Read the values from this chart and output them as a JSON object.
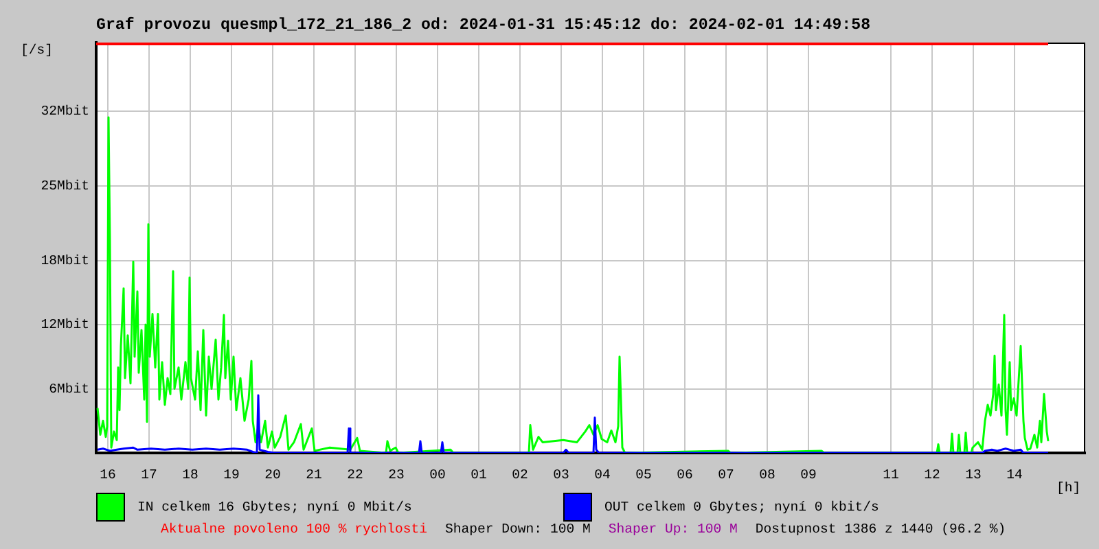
{
  "chart_data": {
    "type": "line",
    "title": "Graf provozu quesmpl_172_21_186_2 od: 2024-01-31 15:45:12 do: 2024-02-01 14:49:58",
    "xlabel": "[h]",
    "ylabel": "[/s]",
    "xlim": [
      "2024-01-31T15:43",
      "2024-02-01T15:43"
    ],
    "xticks": [
      {
        "value": "2024-01-31T16:00",
        "label": "16"
      },
      {
        "value": "2024-01-31T17:00",
        "label": "17"
      },
      {
        "value": "2024-01-31T18:00",
        "label": "18"
      },
      {
        "value": "2024-01-31T19:00",
        "label": "19"
      },
      {
        "value": "2024-01-31T20:00",
        "label": "20"
      },
      {
        "value": "2024-01-31T21:00",
        "label": "21"
      },
      {
        "value": "2024-01-31T22:00",
        "label": "22"
      },
      {
        "value": "2024-01-31T23:00",
        "label": "23"
      },
      {
        "value": "2024-02-01T00:00",
        "label": "00"
      },
      {
        "value": "2024-02-01T01:00",
        "label": "01"
      },
      {
        "value": "2024-02-01T02:00",
        "label": "02"
      },
      {
        "value": "2024-02-01T03:00",
        "label": "03"
      },
      {
        "value": "2024-02-01T04:00",
        "label": "04"
      },
      {
        "value": "2024-02-01T05:00",
        "label": "05"
      },
      {
        "value": "2024-02-01T06:00",
        "label": "06"
      },
      {
        "value": "2024-02-01T07:00",
        "label": "07"
      },
      {
        "value": "2024-02-01T08:00",
        "label": "08"
      },
      {
        "value": "2024-02-01T09:00",
        "label": "09"
      },
      {
        "value": "2024-02-01T11:00",
        "label": "11"
      },
      {
        "value": "2024-02-01T12:00",
        "label": "12"
      },
      {
        "value": "2024-02-01T13:00",
        "label": "13"
      },
      {
        "value": "2024-02-01T14:00",
        "label": "14"
      }
    ],
    "ylim": [
      0,
      38.4
    ],
    "yticks": [
      {
        "value": 6,
        "label": "6Mbit"
      },
      {
        "value": 12,
        "label": "12Mbit"
      },
      {
        "value": 18,
        "label": "18Mbit"
      },
      {
        "value": 25,
        "label": "25Mbit"
      },
      {
        "value": 32,
        "label": "32Mbit"
      }
    ],
    "grid": true,
    "legend": "bottom",
    "marker": "none",
    "line_style": "solid",
    "series": [
      {
        "name": "IN celkem 16 Gbytes; nyní 0 Mbit/s",
        "color": "#00ff00",
        "x": [
          "2024-01-31T15:45",
          "2024-01-31T15:49",
          "2024-01-31T15:53",
          "2024-01-31T15:57",
          "2024-01-31T15:59",
          "2024-01-31T16:01",
          "2024-01-31T16:03",
          "2024-01-31T16:05",
          "2024-01-31T16:09",
          "2024-01-31T16:13",
          "2024-01-31T16:15",
          "2024-01-31T16:17",
          "2024-01-31T16:19",
          "2024-01-31T16:23",
          "2024-01-31T16:25",
          "2024-01-31T16:29",
          "2024-01-31T16:33",
          "2024-01-31T16:37",
          "2024-01-31T16:39",
          "2024-01-31T16:43",
          "2024-01-31T16:45",
          "2024-01-31T16:49",
          "2024-01-31T16:53",
          "2024-01-31T16:55",
          "2024-01-31T16:57",
          "2024-01-31T16:59",
          "2024-01-31T17:01",
          "2024-01-31T17:05",
          "2024-01-31T17:09",
          "2024-01-31T17:13",
          "2024-01-31T17:15",
          "2024-01-31T17:19",
          "2024-01-31T17:23",
          "2024-01-31T17:27",
          "2024-01-31T17:31",
          "2024-01-31T17:35",
          "2024-01-31T17:37",
          "2024-01-31T17:43",
          "2024-01-31T17:47",
          "2024-01-31T17:53",
          "2024-01-31T17:57",
          "2024-01-31T17:59",
          "2024-01-31T18:01",
          "2024-01-31T18:07",
          "2024-01-31T18:11",
          "2024-01-31T18:15",
          "2024-01-31T18:19",
          "2024-01-31T18:23",
          "2024-01-31T18:27",
          "2024-01-31T18:31",
          "2024-01-31T18:37",
          "2024-01-31T18:41",
          "2024-01-31T18:45",
          "2024-01-31T18:49",
          "2024-01-31T18:51",
          "2024-01-31T18:55",
          "2024-01-31T18:59",
          "2024-01-31T19:03",
          "2024-01-31T19:07",
          "2024-01-31T19:13",
          "2024-01-31T19:19",
          "2024-01-31T19:25",
          "2024-01-31T19:29",
          "2024-01-31T19:31",
          "2024-01-31T19:35",
          "2024-01-31T19:39",
          "2024-01-31T19:43",
          "2024-01-31T19:49",
          "2024-01-31T19:53",
          "2024-01-31T19:59",
          "2024-01-31T20:03",
          "2024-01-31T20:11",
          "2024-01-31T20:19",
          "2024-01-31T20:23",
          "2024-01-31T20:31",
          "2024-01-31T20:41",
          "2024-01-31T20:45",
          "2024-01-31T20:57",
          "2024-01-31T21:01",
          "2024-01-31T21:23",
          "2024-01-31T21:53",
          "2024-01-31T22:03",
          "2024-01-31T22:07",
          "2024-01-31T22:45",
          "2024-01-31T22:47",
          "2024-01-31T22:51",
          "2024-01-31T22:59",
          "2024-01-31T23:03",
          "2024-02-01T00:19",
          "2024-02-01T00:23",
          "2024-02-01T02:13",
          "2024-02-01T02:15",
          "2024-02-01T02:19",
          "2024-02-01T02:27",
          "2024-02-01T02:33",
          "2024-02-01T03:03",
          "2024-02-01T03:23",
          "2024-02-01T03:35",
          "2024-02-01T03:41",
          "2024-02-01T03:47",
          "2024-02-01T03:53",
          "2024-02-01T03:59",
          "2024-02-01T04:07",
          "2024-02-01T04:13",
          "2024-02-01T04:19",
          "2024-02-01T04:23",
          "2024-02-01T04:25",
          "2024-02-01T04:27",
          "2024-02-01T04:29",
          "2024-02-01T04:33",
          "2024-02-01T07:03",
          "2024-02-01T07:07",
          "2024-02-01T09:19",
          "2024-02-01T09:23",
          "2024-02-01T12:07",
          "2024-02-01T12:09",
          "2024-02-01T12:11",
          "2024-02-01T12:27",
          "2024-02-01T12:29",
          "2024-02-01T12:31",
          "2024-02-01T12:37",
          "2024-02-01T12:39",
          "2024-02-01T12:41",
          "2024-02-01T12:47",
          "2024-02-01T12:49",
          "2024-02-01T12:51",
          "2024-02-01T12:57",
          "2024-02-01T12:59",
          "2024-02-01T13:07",
          "2024-02-01T13:13",
          "2024-02-01T13:17",
          "2024-02-01T13:21",
          "2024-02-01T13:25",
          "2024-02-01T13:29",
          "2024-02-01T13:31",
          "2024-02-01T13:33",
          "2024-02-01T13:37",
          "2024-02-01T13:41",
          "2024-02-01T13:45",
          "2024-02-01T13:47",
          "2024-02-01T13:49",
          "2024-02-01T13:53",
          "2024-02-01T13:55",
          "2024-02-01T13:59",
          "2024-02-01T14:03",
          "2024-02-01T14:09",
          "2024-02-01T14:13",
          "2024-02-01T14:15",
          "2024-02-01T14:19",
          "2024-02-01T14:23",
          "2024-02-01T14:29",
          "2024-02-01T14:33",
          "2024-02-01T14:37",
          "2024-02-01T14:39",
          "2024-02-01T14:43",
          "2024-02-01T14:47",
          "2024-02-01T14:49"
        ],
        "values": [
          4.2,
          1.7,
          3.0,
          1.5,
          2.5,
          31.4,
          20.0,
          0.5,
          2.0,
          1.2,
          8.0,
          4.0,
          10.0,
          15.4,
          7.0,
          11.0,
          6.5,
          17.9,
          9.0,
          15.1,
          7.5,
          11.5,
          5.0,
          12.0,
          2.9,
          21.4,
          9.0,
          13.0,
          8.0,
          13.0,
          5.0,
          8.5,
          4.5,
          7.0,
          5.5,
          17.0,
          6.0,
          8.0,
          5.0,
          8.5,
          6.0,
          16.4,
          7.0,
          5.0,
          9.5,
          4.0,
          11.5,
          3.5,
          9.0,
          6.0,
          10.6,
          5.0,
          8.0,
          12.9,
          7.0,
          10.5,
          5.0,
          9.0,
          4.0,
          7.0,
          3.0,
          5.0,
          8.6,
          3.0,
          1.0,
          2.5,
          1.0,
          3.0,
          0.5,
          2.0,
          0.5,
          1.5,
          3.5,
          0.3,
          1.0,
          2.7,
          0.3,
          2.3,
          0.2,
          0.5,
          0.3,
          1.4,
          0.2,
          0,
          1.1,
          0.2,
          0.5,
          0,
          0.3,
          0,
          0,
          2.6,
          0.3,
          1.5,
          1.0,
          1.2,
          1.0,
          2.0,
          2.6,
          1.7,
          2.6,
          1.3,
          1.0,
          2.1,
          1.0,
          2.5,
          9.0,
          5.0,
          0.5,
          0,
          0.2,
          0,
          0.2,
          0,
          0,
          0.8,
          0,
          0,
          1.8,
          0,
          0,
          1.7,
          0,
          0,
          1.9,
          0,
          0,
          0.5,
          1.0,
          0.3,
          3.0,
          4.5,
          3.5,
          5.5,
          9.1,
          4.0,
          6.4,
          3.5,
          12.9,
          4.0,
          1.7,
          8.5,
          4.0,
          5.1,
          3.5,
          10.0,
          3.0,
          1.4,
          0.3,
          0.4,
          1.7,
          0.5,
          3.0,
          1.0,
          5.5,
          2.0,
          1.1
        ]
      },
      {
        "name": "OUT celkem 0 Gbytes; nyní 0 kbit/s",
        "color": "#0000ff",
        "x": [
          "2024-01-31T15:45",
          "2024-01-31T15:53",
          "2024-01-31T16:03",
          "2024-01-31T16:13",
          "2024-01-31T16:23",
          "2024-01-31T16:37",
          "2024-01-31T16:43",
          "2024-01-31T17:03",
          "2024-01-31T17:23",
          "2024-01-31T17:43",
          "2024-01-31T18:03",
          "2024-01-31T18:23",
          "2024-01-31T18:43",
          "2024-01-31T19:03",
          "2024-01-31T19:23",
          "2024-01-31T19:31",
          "2024-01-31T19:37",
          "2024-01-31T19:39",
          "2024-01-31T19:41",
          "2024-01-31T19:53",
          "2024-01-31T20:03",
          "2024-01-31T21:49",
          "2024-01-31T21:51",
          "2024-01-31T21:53",
          "2024-01-31T23:33",
          "2024-01-31T23:35",
          "2024-01-31T23:37",
          "2024-02-01T00:05",
          "2024-02-01T00:07",
          "2024-02-01T00:09",
          "2024-02-01T03:03",
          "2024-02-01T03:07",
          "2024-02-01T03:11",
          "2024-02-01T03:47",
          "2024-02-01T03:49",
          "2024-02-01T03:51",
          "2024-02-01T03:55",
          "2024-02-01T13:13",
          "2024-02-01T13:17",
          "2024-02-01T13:27",
          "2024-02-01T13:35",
          "2024-02-01T13:47",
          "2024-02-01T13:59",
          "2024-02-01T14:09",
          "2024-02-01T14:13",
          "2024-02-01T14:49"
        ],
        "values": [
          0.3,
          0.4,
          0.2,
          0.3,
          0.4,
          0.5,
          0.3,
          0.4,
          0.3,
          0.4,
          0.3,
          0.4,
          0.3,
          0.4,
          0.3,
          0.1,
          0,
          5.4,
          0.3,
          0.1,
          0,
          0,
          2.3,
          0,
          0,
          1.1,
          0,
          0,
          1.0,
          0,
          0,
          0.3,
          0,
          0,
          3.3,
          0.3,
          0,
          0,
          0.2,
          0.3,
          0.2,
          0.4,
          0.2,
          0.3,
          0,
          0
        ]
      }
    ],
    "ref_lines": [
      {
        "axis": "y",
        "value": 38.4,
        "label": "Aktualne povoleno 100 % rychlosti",
        "color": "#ff0000"
      }
    ],
    "annotations": [
      "Shaper Down: 100 M",
      "Shaper Up: 100 M",
      "Dostupnost 1386 z 1440 (96.2 %)"
    ]
  }
}
